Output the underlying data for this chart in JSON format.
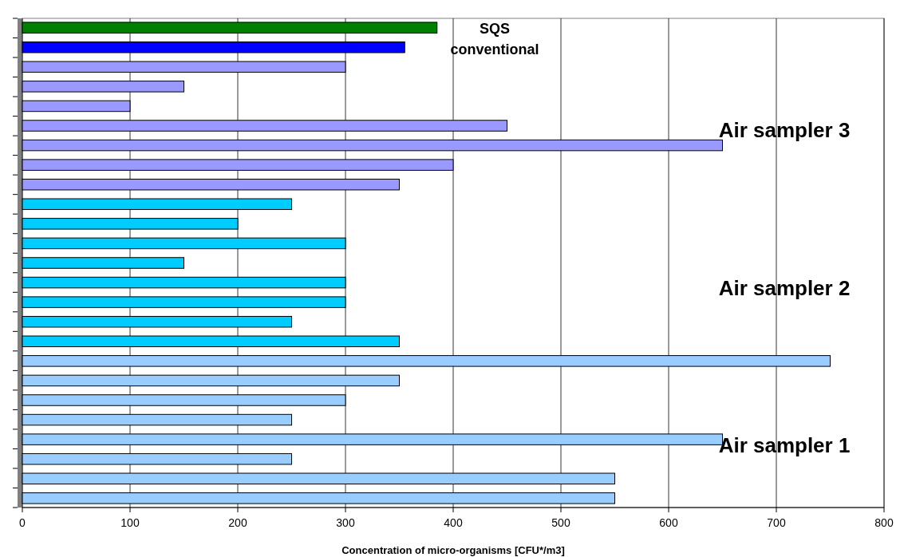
{
  "chart_data": {
    "type": "bar",
    "orientation": "horizontal",
    "xlabel": "Concentration of micro-organisms [CFU*/m3]",
    "categories": [
      null,
      null,
      null,
      null,
      null,
      null,
      null,
      null,
      null,
      null,
      null,
      null,
      null,
      null,
      null,
      null,
      null,
      null,
      null,
      null,
      null,
      null,
      null,
      null,
      null
    ],
    "values": [
      385,
      355,
      300,
      150,
      100,
      450,
      650,
      400,
      350,
      250,
      200,
      300,
      150,
      300,
      300,
      250,
      350,
      750,
      350,
      300,
      250,
      650,
      250,
      550,
      550
    ],
    "colors": [
      "#008000",
      "#0000ff",
      "#9999ff",
      "#9999ff",
      "#9999ff",
      "#9999ff",
      "#9999ff",
      "#9999ff",
      "#9999ff",
      "#00ccff",
      "#00ccff",
      "#00ccff",
      "#00ccff",
      "#00ccff",
      "#00ccff",
      "#00ccff",
      "#00ccff",
      "#99ccff",
      "#99ccff",
      "#99ccff",
      "#99ccff",
      "#99ccff",
      "#99ccff",
      "#99ccff",
      "#99ccff"
    ],
    "xlim": [
      0,
      800
    ],
    "xticks": [
      0,
      100,
      200,
      300,
      400,
      500,
      600,
      700,
      800
    ],
    "grid": "x",
    "annotations": [
      "SQS conventional",
      "Air sampler 3",
      "Air sampler 2",
      "Air sampler 1"
    ]
  }
}
